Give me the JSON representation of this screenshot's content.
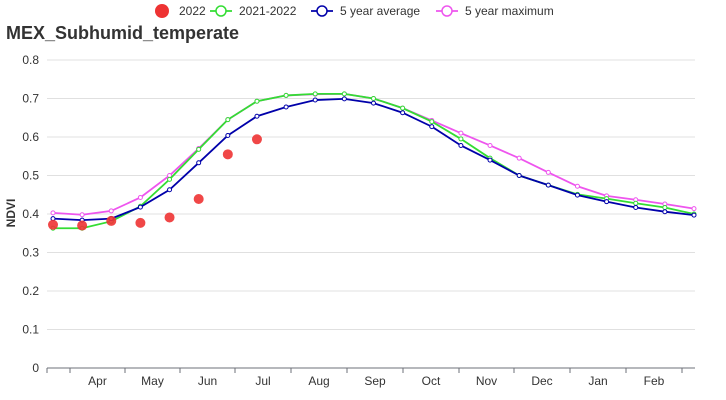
{
  "chart_data": {
    "type": "line",
    "title": "MEX_Subhumid_temperate",
    "ylabel": "NDVI",
    "xlabel": "",
    "ylim": [
      0,
      0.8
    ],
    "yticks": [
      "0",
      "0.1",
      "0.2",
      "0.3",
      "0.4",
      "0.5",
      "0.6",
      "0.7",
      "0.8"
    ],
    "months": [
      "Apr",
      "May",
      "Jun",
      "Jul",
      "Aug",
      "Sep",
      "Oct",
      "Nov",
      "Dec",
      "Jan",
      "Feb"
    ],
    "grid": "horizontal",
    "legend_position": "top",
    "series": [
      {
        "name": "2022",
        "style": "points",
        "color": "#ee3333",
        "values": [
          0.372,
          0.37,
          0.382,
          0.377,
          0.391,
          0.439,
          0.555,
          0.594
        ]
      },
      {
        "name": "2021-2022",
        "style": "line",
        "color": "#33dd33",
        "values": [
          0.363,
          0.363,
          0.381,
          0.42,
          0.49,
          0.568,
          0.645,
          0.693,
          0.708,
          0.712,
          0.712,
          0.7,
          0.675,
          0.64,
          0.595,
          0.545,
          0.5,
          0.475,
          0.451,
          0.44,
          0.428,
          0.417,
          0.4
        ]
      },
      {
        "name": "5 year average",
        "style": "line",
        "color": "#0000aa",
        "values": [
          0.388,
          0.384,
          0.388,
          0.418,
          0.463,
          0.533,
          0.604,
          0.654,
          0.678,
          0.696,
          0.699,
          0.688,
          0.663,
          0.627,
          0.578,
          0.54,
          0.5,
          0.475,
          0.449,
          0.432,
          0.417,
          0.406,
          0.397
        ]
      },
      {
        "name": "5 year maximum",
        "style": "line",
        "color": "#ee55ee",
        "values": [
          0.403,
          0.398,
          0.408,
          0.443,
          0.5,
          0.57,
          0.645,
          0.693,
          0.708,
          0.711,
          0.712,
          0.7,
          0.675,
          0.643,
          0.61,
          0.578,
          0.545,
          0.508,
          0.472,
          0.447,
          0.437,
          0.426,
          0.414
        ]
      }
    ]
  }
}
